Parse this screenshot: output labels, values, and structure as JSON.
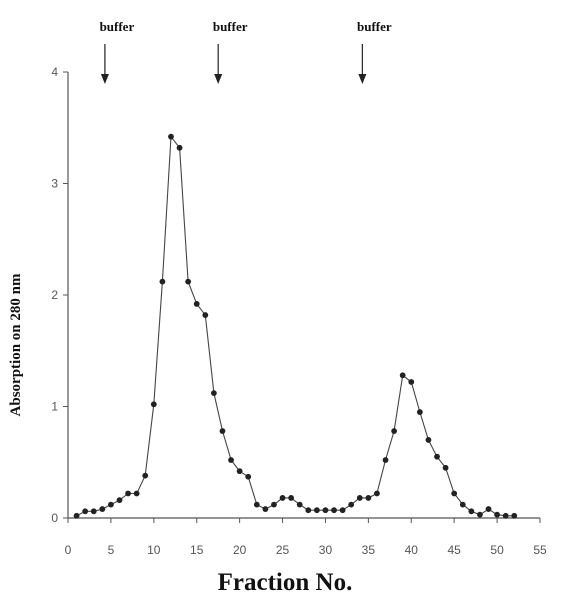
{
  "chart_data": {
    "type": "line",
    "title": "",
    "xlabel": "Fraction No.",
    "ylabel": "Absorption on 280 nm",
    "xlim": [
      0,
      55
    ],
    "ylim": [
      0,
      4
    ],
    "x_ticks": [
      0,
      5,
      10,
      15,
      20,
      25,
      30,
      35,
      40,
      45,
      50,
      55
    ],
    "y_ticks": [
      0,
      1,
      2,
      3,
      4
    ],
    "grid": false,
    "legend": "none",
    "annotations": [
      {
        "text": "buffer",
        "x": 4.3
      },
      {
        "text": "buffer",
        "x": 17.5
      },
      {
        "text": "buffer",
        "x": 34.3
      }
    ],
    "series": [
      {
        "marker": "circle",
        "color": "#222222",
        "x": [
          1,
          2,
          3,
          4,
          5,
          6,
          7,
          8,
          9,
          10,
          11,
          12,
          13,
          14,
          15,
          16,
          17,
          18,
          19,
          20,
          21,
          22,
          23,
          24,
          25,
          26,
          27,
          28,
          29,
          30,
          31,
          32,
          33,
          34,
          35,
          36,
          37,
          38,
          39,
          40,
          41,
          42,
          43,
          44,
          45,
          46,
          47,
          48,
          49,
          50,
          51,
          52
        ],
        "y": [
          0.02,
          0.06,
          0.06,
          0.08,
          0.12,
          0.16,
          0.22,
          0.22,
          0.38,
          1.02,
          2.12,
          3.42,
          3.32,
          2.12,
          1.92,
          1.82,
          1.12,
          0.78,
          0.52,
          0.42,
          0.37,
          0.12,
          0.08,
          0.12,
          0.18,
          0.18,
          0.12,
          0.07,
          0.07,
          0.07,
          0.07,
          0.07,
          0.12,
          0.18,
          0.18,
          0.22,
          0.52,
          0.78,
          1.28,
          1.22,
          0.95,
          0.7,
          0.55,
          0.45,
          0.22,
          0.12,
          0.06,
          0.03,
          0.08,
          0.03,
          0.02,
          0.02
        ]
      }
    ]
  }
}
